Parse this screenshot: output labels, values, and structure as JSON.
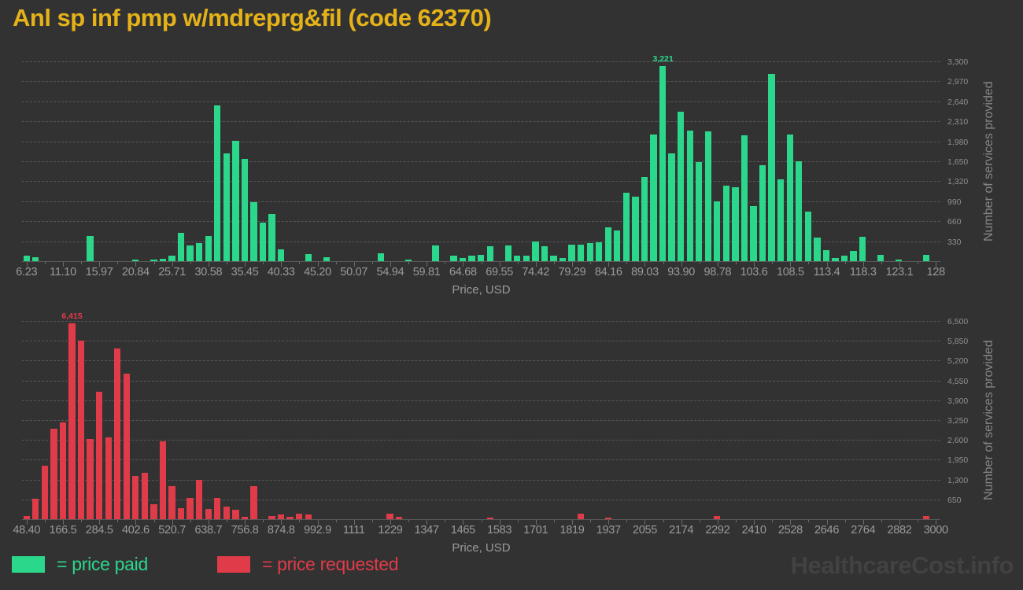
{
  "title": "Anl sp inf pmp w/mdreprg&fil (code 62370)",
  "watermark": "HealthcareCost.info",
  "colors": {
    "background": "#333233",
    "paid": "#2bd78b",
    "requested": "#e03b48",
    "title": "#e5b318",
    "axis_text": "#9a9a9a",
    "grid": "#565656",
    "watermark": "#424242"
  },
  "legend": {
    "items": [
      {
        "name": "price-paid",
        "label": "= price paid",
        "color": "#2bd78b"
      },
      {
        "name": "price-requested",
        "label": "= price requested",
        "color": "#e03b48"
      }
    ]
  },
  "chart_data": [
    {
      "type": "bar",
      "name": "price-paid",
      "color": "#2bd78b",
      "title": "",
      "xlabel": "Price, USD",
      "ylabel": "Number of services provided",
      "ymax": 3300,
      "ylim": [
        0,
        3300
      ],
      "grid": true,
      "legend_position": "bottom-left",
      "peak_annotation": "3,221",
      "x_tick_labels": [
        "6.23",
        "11.10",
        "15.97",
        "20.84",
        "25.71",
        "30.58",
        "35.45",
        "40.33",
        "45.20",
        "50.07",
        "54.94",
        "59.81",
        "64.68",
        "69.55",
        "74.42",
        "79.29",
        "84.16",
        "89.03",
        "93.90",
        "98.78",
        "103.6",
        "108.5",
        "113.4",
        "118.3",
        "123.1",
        "128"
      ],
      "y_tick_labels": [
        "330",
        "660",
        "990",
        "1,320",
        "1,650",
        "1,980",
        "2,310",
        "2,640",
        "2,970",
        "3,300"
      ],
      "bin_width_usd": 1.217,
      "values": [
        87,
        70,
        0,
        0,
        0,
        0,
        0,
        415,
        0,
        0,
        0,
        0,
        30,
        0,
        30,
        41,
        96,
        463,
        257,
        298,
        413,
        2572,
        1784,
        1985,
        1687,
        981,
        642,
        784,
        190,
        0,
        0,
        120,
        0,
        65,
        0,
        0,
        0,
        0,
        0,
        125,
        0,
        0,
        32,
        0,
        0,
        266,
        0,
        96,
        55,
        96,
        110,
        252,
        0,
        266,
        87,
        87,
        321,
        244,
        96,
        50,
        270,
        270,
        302,
        308,
        556,
        503,
        1129,
        1072,
        1385,
        2088,
        3221,
        1784,
        2466,
        2153,
        1632,
        2140,
        990,
        1241,
        1215,
        2075,
        916,
        1585,
        3091,
        1350,
        2097,
        1650,
        820,
        390,
        187,
        52,
        91,
        165,
        408,
        0,
        100,
        0,
        30,
        0,
        0,
        104,
        0
      ]
    },
    {
      "type": "bar",
      "name": "price-requested",
      "color": "#e03b48",
      "title": "",
      "xlabel": "Price, USD",
      "ylabel": "Number of services provided",
      "ymax": 6500,
      "ylim": [
        0,
        6500
      ],
      "grid": true,
      "legend_position": "bottom-left",
      "peak_annotation": "6,415",
      "x_tick_labels": [
        "48.40",
        "166.5",
        "284.5",
        "402.6",
        "520.7",
        "638.7",
        "756.8",
        "874.8",
        "992.9",
        "1111",
        "1229",
        "1347",
        "1465",
        "1583",
        "1701",
        "1819",
        "1937",
        "2055",
        "2174",
        "2292",
        "2410",
        "2528",
        "2646",
        "2764",
        "2882",
        "3000"
      ],
      "y_tick_labels": [
        "650",
        "1,300",
        "1,950",
        "2,600",
        "3,250",
        "3,900",
        "4,550",
        "5,200",
        "5,850",
        "6,500"
      ],
      "bin_width_usd": 29.51,
      "values": [
        110,
        675,
        1762,
        2959,
        3164,
        6415,
        5850,
        2625,
        4182,
        2694,
        5610,
        4780,
        1420,
        1522,
        496,
        2548,
        1078,
        368,
        684,
        1291,
        342,
        693,
        410,
        308,
        77,
        1078,
        0,
        103,
        154,
        70,
        188,
        154,
        0,
        0,
        0,
        0,
        0,
        0,
        0,
        0,
        188,
        85,
        0,
        0,
        0,
        0,
        0,
        0,
        0,
        0,
        0,
        43,
        0,
        0,
        0,
        0,
        0,
        0,
        0,
        0,
        0,
        188,
        0,
        0,
        35,
        0,
        0,
        0,
        0,
        0,
        0,
        0,
        0,
        0,
        0,
        0,
        100,
        0,
        0,
        0,
        0,
        0,
        0,
        0,
        0,
        0,
        0,
        0,
        0,
        0,
        0,
        0,
        0,
        0,
        0,
        0,
        0,
        0,
        0,
        100,
        0
      ]
    }
  ]
}
